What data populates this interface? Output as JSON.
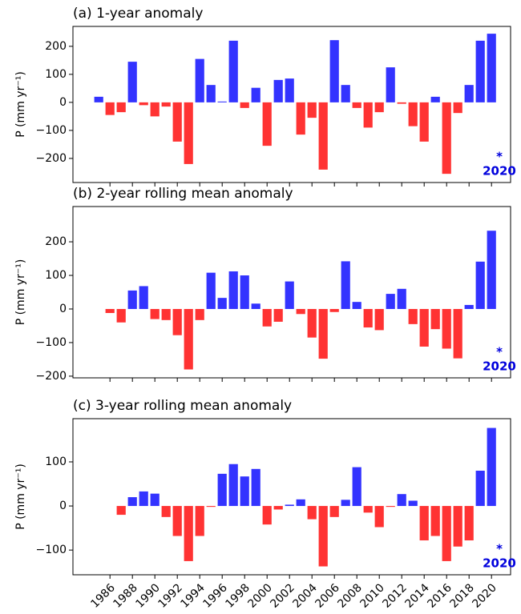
{
  "chart_data": [
    {
      "type": "bar",
      "title": "(a) 1-year anomaly",
      "y_label": "P (mm yr⁻¹)",
      "x": [
        1985,
        1986,
        1987,
        1988,
        1989,
        1990,
        1991,
        1992,
        1993,
        1994,
        1995,
        1996,
        1997,
        1998,
        1999,
        2000,
        2001,
        2002,
        2003,
        2004,
        2005,
        2006,
        2007,
        2008,
        2009,
        2010,
        2011,
        2012,
        2013,
        2014,
        2015,
        2016,
        2017,
        2018,
        2019,
        2020
      ],
      "values": [
        20,
        -45,
        -35,
        145,
        -10,
        -50,
        -15,
        -140,
        -220,
        155,
        62,
        3,
        220,
        -20,
        52,
        -155,
        80,
        85,
        -115,
        -55,
        -240,
        222,
        62,
        -20,
        -90,
        -35,
        125,
        -5,
        -85,
        -140,
        20,
        -255,
        -38,
        62,
        220,
        245
      ],
      "positive_color": "#3333ff",
      "negative_color": "#ff3333",
      "xlim": [
        1982.7,
        2021.7
      ],
      "xticks": [
        1986,
        1988,
        1990,
        1992,
        1994,
        1996,
        1998,
        2000,
        2002,
        2004,
        2006,
        2008,
        2010,
        2012,
        2014,
        2016,
        2018,
        2020
      ],
      "show_xtick_labels": false,
      "ylim": [
        -286,
        271
      ],
      "yticks": [
        {
          "value": -200,
          "label": "−200"
        },
        {
          "value": -100,
          "label": "−100"
        },
        0,
        100,
        200
      ],
      "annotations": [
        "*",
        "2020"
      ],
      "annotation_color": "#0000dd"
    },
    {
      "type": "bar",
      "title": "(b) 2-year rolling mean anomaly",
      "y_label": "P (mm yr⁻¹)",
      "x": [
        1985,
        1986,
        1987,
        1988,
        1989,
        1990,
        1991,
        1992,
        1993,
        1994,
        1995,
        1996,
        1997,
        1998,
        1999,
        2000,
        2001,
        2002,
        2003,
        2004,
        2005,
        2006,
        2007,
        2008,
        2009,
        2010,
        2011,
        2012,
        2013,
        2014,
        2015,
        2016,
        2017,
        2018,
        2019,
        2020
      ],
      "values": [
        null,
        -12,
        -40,
        55,
        68,
        -30,
        -33,
        -78,
        -180,
        -33,
        108,
        33,
        112,
        100,
        16,
        -52,
        -38,
        82,
        -15,
        -85,
        -148,
        -9,
        142,
        21,
        -55,
        -63,
        45,
        60,
        -45,
        -112,
        -60,
        -118,
        -147,
        12,
        141,
        233
      ],
      "positive_color": "#3333ff",
      "negative_color": "#ff3333",
      "xlim": [
        1982.7,
        2021.7
      ],
      "xticks": [
        1986,
        1988,
        1990,
        1992,
        1994,
        1996,
        1998,
        2000,
        2002,
        2004,
        2006,
        2008,
        2010,
        2012,
        2014,
        2016,
        2018,
        2020
      ],
      "show_xtick_labels": false,
      "ylim": [
        -205,
        305
      ],
      "yticks": [
        {
          "value": -200,
          "label": "−200"
        },
        {
          "value": -100,
          "label": "−100"
        },
        0,
        100,
        200
      ],
      "annotations": [
        "*",
        "2020"
      ],
      "annotation_color": "#0000dd"
    },
    {
      "type": "bar",
      "title": "(c) 3-year rolling mean anomaly",
      "y_label": "P (mm yr⁻¹)",
      "x": [
        1985,
        1986,
        1987,
        1988,
        1989,
        1990,
        1991,
        1992,
        1993,
        1994,
        1995,
        1996,
        1997,
        1998,
        1999,
        2000,
        2001,
        2002,
        2003,
        2004,
        2005,
        2006,
        2007,
        2008,
        2009,
        2010,
        2011,
        2012,
        2013,
        2014,
        2015,
        2016,
        2017,
        2018,
        2019,
        2020
      ],
      "values": [
        null,
        null,
        -20,
        20,
        33,
        28,
        -25,
        -68,
        -125,
        -68,
        -2,
        73,
        95,
        67,
        84,
        -42,
        -8,
        3,
        15,
        -30,
        -137,
        -25,
        14,
        88,
        -15,
        -48,
        -2,
        27,
        12,
        -78,
        -68,
        -125,
        -92,
        -78,
        80,
        177
      ],
      "positive_color": "#3333ff",
      "negative_color": "#ff3333",
      "xlim": [
        1982.7,
        2021.7
      ],
      "xticks": [
        1986,
        1988,
        1990,
        1992,
        1994,
        1996,
        1998,
        2000,
        2002,
        2004,
        2006,
        2008,
        2010,
        2012,
        2014,
        2016,
        2018,
        2020
      ],
      "show_xtick_labels": true,
      "ylim": [
        -156,
        198
      ],
      "yticks": [
        {
          "value": -100,
          "label": "−100"
        },
        0,
        100
      ],
      "annotations": [
        "*",
        "2020"
      ],
      "annotation_color": "#0000dd"
    }
  ]
}
